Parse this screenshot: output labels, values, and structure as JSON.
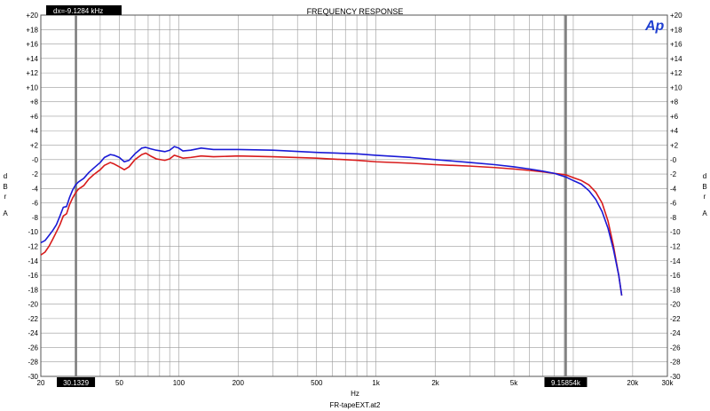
{
  "chart_data": {
    "type": "line",
    "title": "FREQUENCY RESPONSE",
    "xlabel": "Hz",
    "ylabel_left": [
      "d",
      "B",
      "r",
      "A"
    ],
    "ylabel_right": [
      "d",
      "B",
      "r",
      "A"
    ],
    "footer": "FR-tapeEXT.at2",
    "x_scale": "log",
    "xlim": [
      20,
      30000
    ],
    "ylim": [
      -30,
      20
    ],
    "grid": true,
    "y_ticks": [
      "+20",
      "+18",
      "+16",
      "+14",
      "+12",
      "+10",
      "+8",
      "+6",
      "+4",
      "+2",
      "-0",
      "-2",
      "-4",
      "-6",
      "-8",
      "-10",
      "-12",
      "-14",
      "-16",
      "-18",
      "-20",
      "-22",
      "-24",
      "-26",
      "-28",
      "-30"
    ],
    "y_tick_values": [
      20,
      18,
      16,
      14,
      12,
      10,
      8,
      6,
      4,
      2,
      0,
      -2,
      -4,
      -6,
      -8,
      -10,
      -12,
      -14,
      -16,
      -18,
      -20,
      -22,
      -24,
      -26,
      -28,
      -30
    ],
    "x_ticks": [
      {
        "value": 20,
        "label": "20"
      },
      {
        "value": 50,
        "label": "50"
      },
      {
        "value": 100,
        "label": "100"
      },
      {
        "value": 200,
        "label": "200"
      },
      {
        "value": 500,
        "label": "500"
      },
      {
        "value": 1000,
        "label": "1k"
      },
      {
        "value": 2000,
        "label": "2k"
      },
      {
        "value": 5000,
        "label": "5k"
      },
      {
        "value": 20000,
        "label": "20k"
      },
      {
        "value": 30000,
        "label": "30k"
      }
    ],
    "cursors": [
      {
        "x": 30.1329,
        "label": "30.1329"
      },
      {
        "x": 9158.54,
        "label": "9.15854k"
      }
    ],
    "delta_readout": "dx=-9.1284 kHz",
    "logo": "Ap",
    "series": [
      {
        "color": "#1a1ad6",
        "points": [
          [
            20,
            -11.5
          ],
          [
            21,
            -11.2
          ],
          [
            22,
            -10.5
          ],
          [
            23,
            -9.8
          ],
          [
            24,
            -9.0
          ],
          [
            25,
            -7.8
          ],
          [
            26,
            -6.6
          ],
          [
            27,
            -6.5
          ],
          [
            28,
            -5.2
          ],
          [
            29,
            -4.2
          ],
          [
            30,
            -3.5
          ],
          [
            31,
            -3.1
          ],
          [
            33,
            -2.6
          ],
          [
            35,
            -1.8
          ],
          [
            37,
            -1.2
          ],
          [
            40,
            -0.4
          ],
          [
            42,
            0.3
          ],
          [
            45,
            0.7
          ],
          [
            47,
            0.6
          ],
          [
            50,
            0.3
          ],
          [
            53,
            -0.3
          ],
          [
            56,
            -0.1
          ],
          [
            60,
            0.8
          ],
          [
            65,
            1.6
          ],
          [
            68,
            1.7
          ],
          [
            72,
            1.5
          ],
          [
            77,
            1.3
          ],
          [
            85,
            1.1
          ],
          [
            90,
            1.3
          ],
          [
            95,
            1.8
          ],
          [
            100,
            1.6
          ],
          [
            105,
            1.2
          ],
          [
            115,
            1.3
          ],
          [
            130,
            1.6
          ],
          [
            150,
            1.4
          ],
          [
            200,
            1.4
          ],
          [
            300,
            1.3
          ],
          [
            500,
            1.0
          ],
          [
            800,
            0.8
          ],
          [
            1000,
            0.6
          ],
          [
            1500,
            0.3
          ],
          [
            2000,
            0.0
          ],
          [
            3000,
            -0.4
          ],
          [
            4000,
            -0.7
          ],
          [
            5000,
            -1.0
          ],
          [
            6000,
            -1.3
          ],
          [
            7000,
            -1.6
          ],
          [
            8000,
            -1.9
          ],
          [
            9158,
            -2.4
          ],
          [
            10000,
            -2.9
          ],
          [
            11000,
            -3.4
          ],
          [
            12000,
            -4.3
          ],
          [
            13000,
            -5.5
          ],
          [
            14000,
            -7.2
          ],
          [
            15000,
            -9.5
          ],
          [
            16000,
            -12.5
          ],
          [
            17000,
            -16.0
          ],
          [
            17600,
            -18.8
          ]
        ]
      },
      {
        "color": "#d81b1b",
        "points": [
          [
            20,
            -13.2
          ],
          [
            21,
            -12.8
          ],
          [
            22,
            -12.0
          ],
          [
            23,
            -11.0
          ],
          [
            24,
            -10.0
          ],
          [
            25,
            -9.0
          ],
          [
            26,
            -7.8
          ],
          [
            27,
            -7.5
          ],
          [
            28,
            -6.2
          ],
          [
            29,
            -5.3
          ],
          [
            30,
            -4.6
          ],
          [
            31,
            -4.1
          ],
          [
            33,
            -3.6
          ],
          [
            35,
            -2.7
          ],
          [
            37,
            -2.1
          ],
          [
            40,
            -1.4
          ],
          [
            42,
            -0.8
          ],
          [
            45,
            -0.4
          ],
          [
            47,
            -0.6
          ],
          [
            50,
            -1.0
          ],
          [
            53,
            -1.4
          ],
          [
            56,
            -1.0
          ],
          [
            60,
            0.0
          ],
          [
            65,
            0.7
          ],
          [
            68,
            0.9
          ],
          [
            72,
            0.5
          ],
          [
            77,
            0.1
          ],
          [
            85,
            -0.1
          ],
          [
            90,
            0.1
          ],
          [
            95,
            0.6
          ],
          [
            100,
            0.4
          ],
          [
            105,
            0.2
          ],
          [
            115,
            0.3
          ],
          [
            130,
            0.5
          ],
          [
            150,
            0.4
          ],
          [
            200,
            0.5
          ],
          [
            300,
            0.4
          ],
          [
            500,
            0.2
          ],
          [
            800,
            -0.1
          ],
          [
            1000,
            -0.3
          ],
          [
            1500,
            -0.5
          ],
          [
            2000,
            -0.7
          ],
          [
            3000,
            -0.9
          ],
          [
            4000,
            -1.1
          ],
          [
            5000,
            -1.3
          ],
          [
            6000,
            -1.5
          ],
          [
            7000,
            -1.7
          ],
          [
            8000,
            -1.9
          ],
          [
            9158,
            -2.1
          ],
          [
            10000,
            -2.5
          ],
          [
            11000,
            -2.9
          ],
          [
            12000,
            -3.5
          ],
          [
            13000,
            -4.5
          ],
          [
            14000,
            -6.0
          ],
          [
            15000,
            -8.5
          ],
          [
            16000,
            -12.0
          ],
          [
            17000,
            -16.0
          ],
          [
            17600,
            -18.8
          ]
        ]
      }
    ]
  }
}
